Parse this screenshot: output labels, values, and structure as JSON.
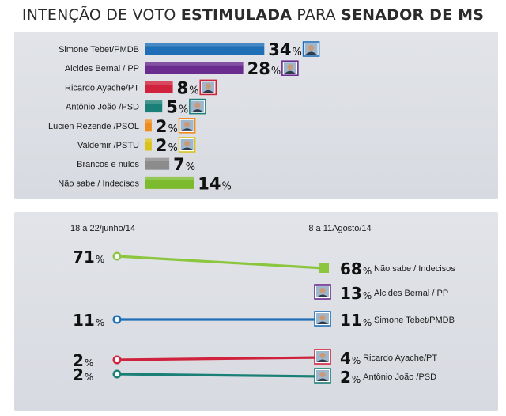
{
  "header": {
    "title_part1": "INTENÇÃO DE VOTO",
    "title_part2": "ESTIMULADA",
    "title_part3": "PARA",
    "title_part4": "SENADOR DE MS"
  },
  "chart_data": [
    {
      "type": "bar",
      "orientation": "horizontal",
      "categories": [
        "Simone Tebet/PMDB",
        "Alcides Bernal / PP",
        "Ricardo Ayache/PT",
        "Antônio João /PSD",
        "Lucien Rezende /PSOL",
        "Valdemir /PSTU",
        "Brancos e nulos",
        "Não sabe / Indecisos"
      ],
      "values": [
        34,
        28,
        8,
        5,
        2,
        2,
        7,
        14
      ],
      "value_labels": [
        "34",
        "28",
        "8",
        "5",
        "2",
        "2",
        "7",
        "14"
      ],
      "unit": "%",
      "colors": [
        "#1f6fb7",
        "#6a2c8e",
        "#d0223c",
        "#1a7f76",
        "#f08c1e",
        "#d9c21a",
        "#8c8c8c",
        "#7dbb2e"
      ],
      "photo_frame_colors": [
        "#1f6fb7",
        "#6a2c8e",
        "#d0223c",
        "#1a7f76",
        "#f08c1e",
        "#d9c21a",
        null,
        null
      ],
      "has_photo": [
        true,
        true,
        true,
        true,
        true,
        true,
        false,
        false
      ]
    },
    {
      "type": "line",
      "x": [
        "18 a 22/junho/14",
        "8 a 11Agosto/14"
      ],
      "series": [
        {
          "name": "Não sabe / Indecisos",
          "values": [
            71,
            68
          ],
          "start_label": "71",
          "end_label": "68",
          "color": "#8cc63f",
          "photo": false
        },
        {
          "name": "Alcides Bernal / PP",
          "values": [
            null,
            13
          ],
          "start_label": "",
          "end_label": "13",
          "color": "#6a2c8e",
          "photo": true
        },
        {
          "name": "Simone Tebet/PMDB",
          "values": [
            11,
            11
          ],
          "start_label": "11",
          "end_label": "11",
          "color": "#1f6fb7",
          "photo": true
        },
        {
          "name": "Ricardo Ayache/PT",
          "values": [
            2,
            4
          ],
          "start_label": "2",
          "end_label": "4",
          "color": "#d0223c",
          "photo": true
        },
        {
          "name": "Antônio João /PSD",
          "values": [
            2,
            2
          ],
          "start_label": "2",
          "end_label": "2",
          "color": "#1a7f76",
          "photo": true
        }
      ],
      "unit": "%"
    }
  ]
}
